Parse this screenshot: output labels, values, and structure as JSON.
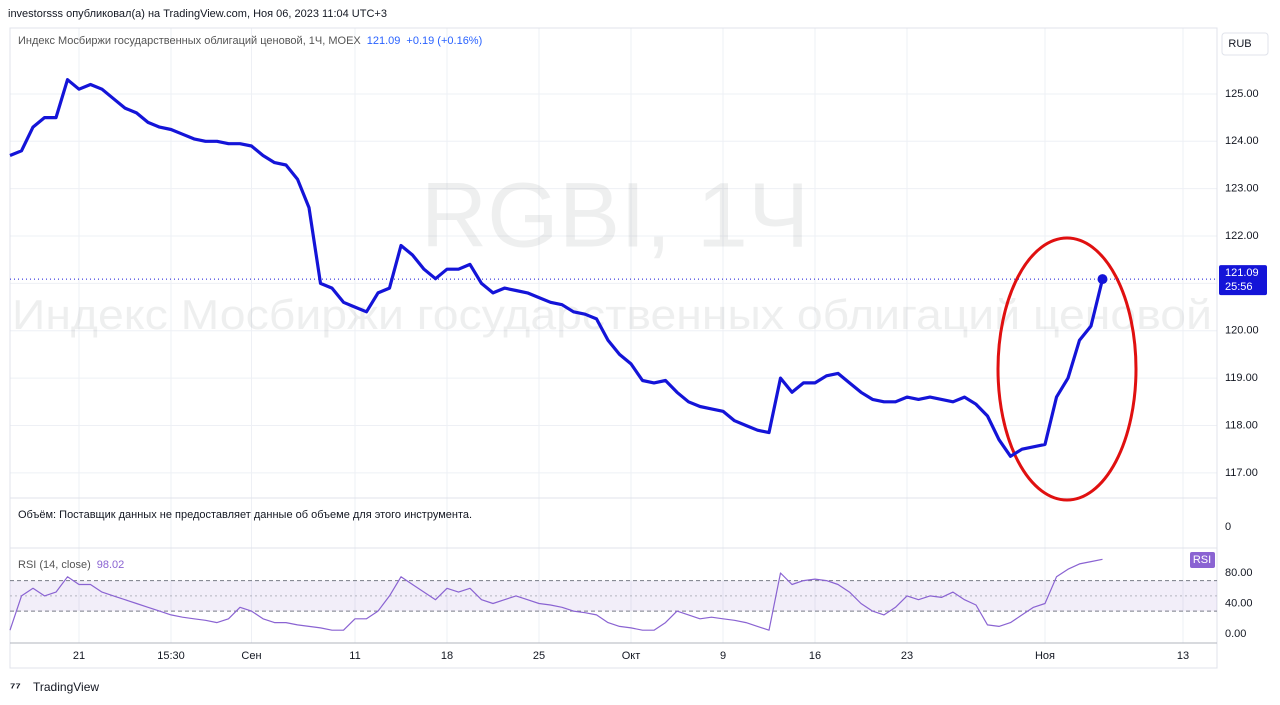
{
  "header": "investorsss опубликовал(а) на TradingView.com, Ноя 06, 2023 11:04 UTC+3",
  "footer": "TradingView",
  "volume_pane": {
    "note": "Объём: Поставщик данных не предоставляет данные об объеме для этого инструмента.",
    "tick": "0"
  },
  "chart_data": [
    {
      "type": "line",
      "title": "Индекс Мосбиржи государственных облигаций ценовой, 1Ч, MOEX",
      "change": "+0.19 (+0.16%)",
      "watermark": "RGBI, 1Ч",
      "watermark_subtitle": "Индекс Мосбиржи государственных облигаций ценовой",
      "currency": "RUB",
      "countdown": "25:56",
      "categories": [
        null,
        null,
        null,
        null,
        null,
        null,
        "21",
        null,
        null,
        null,
        null,
        null,
        null,
        null,
        "15:30",
        null,
        null,
        null,
        null,
        null,
        null,
        "Сен",
        null,
        null,
        null,
        null,
        null,
        null,
        null,
        null,
        "11",
        null,
        null,
        null,
        null,
        null,
        null,
        null,
        "18",
        null,
        null,
        null,
        null,
        null,
        null,
        null,
        "25",
        null,
        null,
        null,
        null,
        null,
        null,
        null,
        "Окт",
        null,
        null,
        null,
        null,
        null,
        null,
        null,
        "9",
        null,
        null,
        null,
        null,
        null,
        null,
        null,
        "16",
        null,
        null,
        null,
        null,
        null,
        null,
        null,
        "23",
        null,
        null,
        null,
        null,
        null,
        null,
        null,
        null,
        null,
        null,
        null,
        "Ноя",
        null,
        null,
        null,
        null,
        null,
        null,
        null,
        null,
        null,
        null,
        null,
        "13",
        null,
        null
      ],
      "series": [
        {
          "color": "#1414d8",
          "values": [
            123.7,
            123.8,
            124.3,
            124.5,
            124.5,
            125.3,
            125.1,
            125.2,
            125.1,
            124.9,
            124.7,
            124.6,
            124.4,
            124.3,
            124.25,
            124.15,
            124.05,
            124.0,
            124.0,
            123.95,
            123.95,
            123.9,
            123.7,
            123.55,
            123.5,
            123.2,
            122.6,
            121.0,
            120.9,
            120.6,
            120.5,
            120.4,
            120.8,
            120.9,
            121.8,
            121.6,
            121.3,
            121.1,
            121.3,
            121.3,
            121.4,
            121.0,
            120.8,
            120.9,
            120.85,
            120.8,
            120.7,
            120.6,
            120.55,
            120.4,
            120.35,
            120.25,
            119.8,
            119.5,
            119.3,
            118.95,
            118.9,
            118.95,
            118.7,
            118.5,
            118.4,
            118.35,
            118.3,
            118.1,
            118.0,
            117.9,
            117.85,
            119.0,
            118.7,
            118.9,
            118.9,
            119.05,
            119.1,
            118.9,
            118.7,
            118.55,
            118.5,
            118.5,
            118.6,
            118.55,
            118.6,
            118.55,
            118.5,
            118.6,
            118.45,
            118.2,
            117.7,
            117.35,
            117.5,
            117.55,
            117.6,
            118.6,
            119.0,
            119.8,
            120.1,
            121.09,
            null,
            null,
            null,
            null,
            null,
            null,
            null,
            null,
            null
          ]
        }
      ],
      "ylim": [
        116.49,
        126.35
      ],
      "yticks": [
        {
          "value": 117,
          "label": "117.00"
        },
        {
          "value": 118,
          "label": "118.00"
        },
        {
          "value": 119,
          "label": "119.00"
        },
        {
          "value": 120,
          "label": "120.00"
        },
        {
          "value": 121,
          "label": "121.00"
        },
        {
          "value": 122,
          "label": "122.00"
        },
        {
          "value": 123,
          "label": "123.00"
        },
        {
          "value": 124,
          "label": "124.00"
        },
        {
          "value": 125,
          "label": "125.00"
        }
      ],
      "grid": true
    },
    {
      "type": "line",
      "badge": "RSI",
      "series": [
        {
          "name": "RSI (14, close)",
          "color": "#8a63d2",
          "values": [
            5,
            50,
            60,
            50,
            55,
            75,
            65,
            65,
            55,
            50,
            45,
            40,
            35,
            30,
            25,
            22,
            20,
            18,
            15,
            20,
            35,
            30,
            20,
            15,
            15,
            12,
            10,
            8,
            5,
            5,
            20,
            20,
            30,
            50,
            75,
            65,
            55,
            45,
            60,
            55,
            60,
            45,
            40,
            45,
            50,
            45,
            40,
            38,
            35,
            30,
            28,
            25,
            15,
            10,
            8,
            5,
            5,
            15,
            30,
            25,
            20,
            22,
            20,
            18,
            15,
            10,
            5,
            80,
            65,
            70,
            72,
            70,
            65,
            55,
            40,
            30,
            25,
            35,
            50,
            45,
            50,
            48,
            55,
            45,
            38,
            12,
            10,
            15,
            25,
            35,
            40,
            75,
            85,
            92,
            95,
            98.02
          ]
        }
      ],
      "ylim": [
        -11.8,
        110.2
      ],
      "yticks": [
        {
          "value": 0,
          "label": "0.00"
        },
        {
          "value": 40,
          "label": "40.00"
        },
        {
          "value": 80,
          "label": "80.00"
        }
      ],
      "band": [
        30,
        70
      ],
      "midline": 50
    }
  ]
}
